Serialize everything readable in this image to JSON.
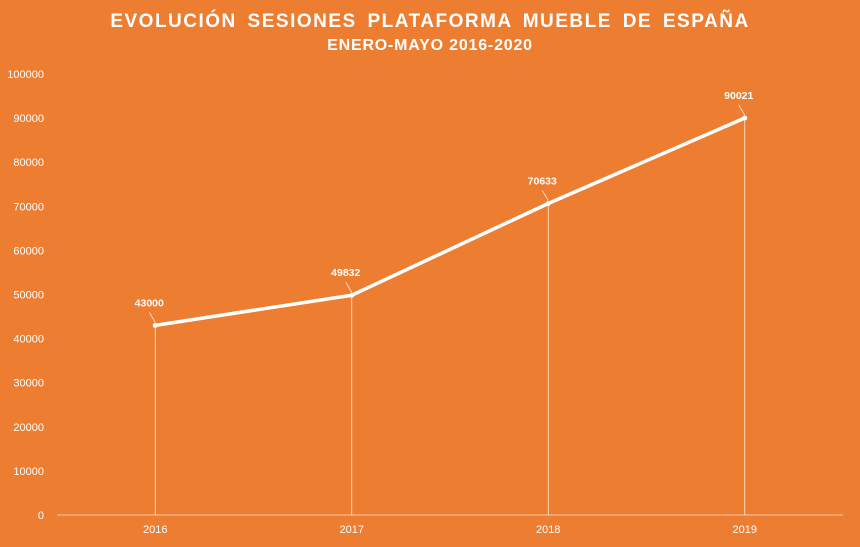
{
  "chart_data": {
    "type": "line",
    "title": "EVOLUCIÓN  SESIONES  PLATAFORMA  MUEBLE  DE  ESPAÑA",
    "subtitle": "ENERO-MAYO 2016-2020",
    "categories": [
      "2016",
      "2017",
      "2018",
      "2019"
    ],
    "series": [
      {
        "values": [
          43000,
          49832,
          70633,
          90021
        ]
      }
    ],
    "data_labels": [
      "43000",
      "49832",
      "70633",
      "90021"
    ],
    "y_ticks": [
      "0",
      "10000",
      "20000",
      "30000",
      "40000",
      "50000",
      "60000",
      "70000",
      "80000",
      "90000",
      "100000"
    ],
    "ylim": [
      0,
      100000
    ],
    "drop_lines": true,
    "grid": false,
    "legend": "none",
    "colors": {
      "background": "#ED7D31",
      "line": "#FFFFFF",
      "text": "#FFFFFF"
    }
  }
}
